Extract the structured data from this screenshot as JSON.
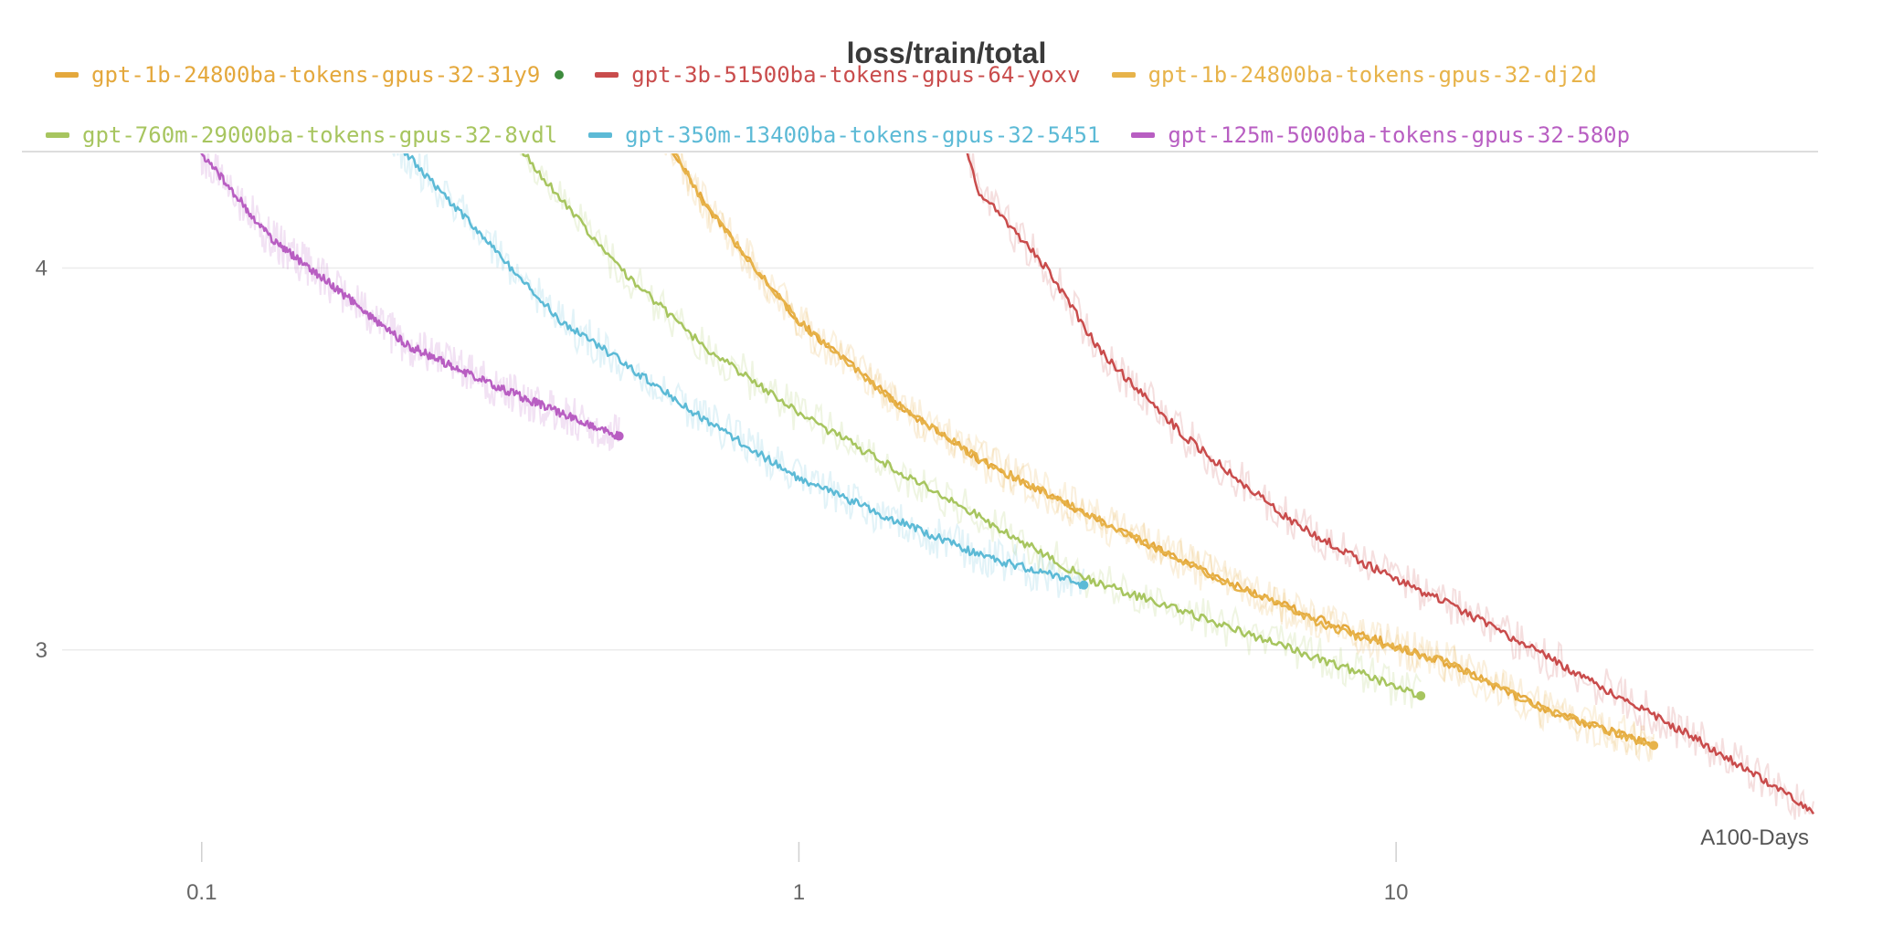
{
  "chart_data": {
    "type": "line",
    "title": "loss/train/total",
    "xlabel": "A100-Days",
    "ylabel": "",
    "x_scale": "log",
    "xlim": [
      0.05,
      50
    ],
    "ylim": [
      2.55,
      4.3
    ],
    "x_ticks": [
      {
        "value": 0.1,
        "label": "0.1"
      },
      {
        "value": 1,
        "label": "1"
      },
      {
        "value": 10,
        "label": "10"
      }
    ],
    "y_ticks": [
      {
        "value": 3,
        "label": "3"
      },
      {
        "value": 4,
        "label": "4"
      }
    ],
    "grid": "horizontal",
    "legend_placement": "top",
    "series": [
      {
        "name": "gpt-1b-24800ba-tokens-gpus-32-31y9",
        "color": "#e4a83c",
        "x": [
          0.5,
          0.7,
          1.0,
          1.5,
          2.0,
          3.0,
          5.0,
          8.0,
          12.0,
          18.0,
          27.0
        ],
        "y": [
          4.55,
          4.16,
          3.86,
          3.63,
          3.5,
          3.36,
          3.19,
          3.06,
          2.97,
          2.84,
          2.75
        ],
        "endpoint_marker": false
      },
      {
        "name": "gpt-3b-51500ba-tokens-gpus-64-yoxv",
        "color": "#c94c4c",
        "x": [
          1.75,
          2.0,
          2.6,
          3.2,
          4.5,
          6.5,
          9.0,
          13.0,
          20.0,
          30.0,
          50.0
        ],
        "y": [
          4.53,
          4.2,
          4.0,
          3.78,
          3.55,
          3.35,
          3.22,
          3.1,
          2.94,
          2.79,
          2.58
        ],
        "endpoint_marker": false
      },
      {
        "name": "gpt-1b-24800ba-tokens-gpus-32-dj2d",
        "color": "#e7b34a",
        "x": [
          0.5,
          0.7,
          1.0,
          1.5,
          2.0,
          3.0,
          5.0,
          8.0,
          12.0,
          18.0,
          27.0
        ],
        "y": [
          4.55,
          4.16,
          3.86,
          3.63,
          3.5,
          3.36,
          3.19,
          3.05,
          2.97,
          2.84,
          2.75
        ],
        "endpoint_marker": true
      },
      {
        "name": "gpt-760m-29000ba-tokens-gpus-32-8vdl",
        "color": "#a7c55f",
        "x": [
          0.27,
          0.35,
          0.5,
          0.7,
          1.0,
          1.5,
          2.0,
          3.0,
          5.0,
          8.0,
          11.0
        ],
        "y": [
          4.55,
          4.29,
          4.0,
          3.79,
          3.62,
          3.46,
          3.35,
          3.19,
          3.07,
          2.96,
          2.88
        ],
        "endpoint_marker": true
      },
      {
        "name": "gpt-350m-13400ba-tokens-gpus-32-5451",
        "color": "#5cbad6",
        "x": [
          0.16,
          0.22,
          0.3,
          0.4,
          0.5,
          0.7,
          1.0,
          1.5,
          2.0,
          3.0
        ],
        "y": [
          4.55,
          4.3,
          4.07,
          3.86,
          3.76,
          3.6,
          3.45,
          3.33,
          3.25,
          3.17
        ],
        "endpoint_marker": true
      },
      {
        "name": "gpt-125m-5000ba-tokens-gpus-32-580p",
        "color": "#b85ec2",
        "x": [
          0.09,
          0.1,
          0.13,
          0.17,
          0.22,
          0.3,
          0.4,
          0.5
        ],
        "y": [
          4.48,
          4.3,
          4.08,
          3.94,
          3.8,
          3.7,
          3.62,
          3.56
        ],
        "endpoint_marker": true
      }
    ]
  }
}
